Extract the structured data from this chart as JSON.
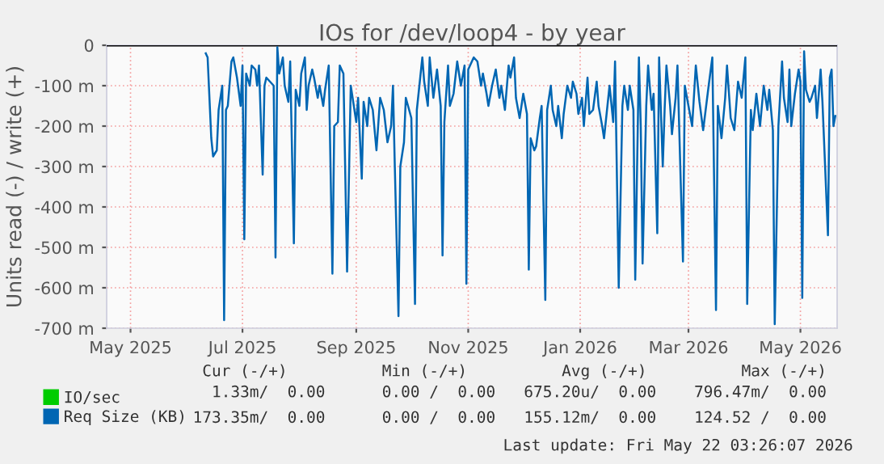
{
  "chart_data": {
    "type": "line",
    "title": "IOs for /dev/loop4 - by year",
    "ylabel": "Units read (-) / write (+)",
    "xlim": [
      "2025-04-18",
      "2026-05-21"
    ],
    "xticks": [
      {
        "value": "2025-05-01",
        "label": "May 2025"
      },
      {
        "value": "2025-07-01",
        "label": "Jul 2025"
      },
      {
        "value": "2025-09-01",
        "label": "Sep 2025"
      },
      {
        "value": "2025-11-01",
        "label": "Nov 2025"
      },
      {
        "value": "2026-01-01",
        "label": "Jan 2026"
      },
      {
        "value": "2026-03-01",
        "label": "Mar 2026"
      },
      {
        "value": "2026-05-01",
        "label": "May 2026"
      }
    ],
    "ylim": [
      -700,
      0
    ],
    "yticks": [
      {
        "value": -700,
        "label": "-700 m"
      },
      {
        "value": -600,
        "label": "-600 m"
      },
      {
        "value": -500,
        "label": "-500 m"
      },
      {
        "value": -400,
        "label": "-400 m"
      },
      {
        "value": -300,
        "label": "-300 m"
      },
      {
        "value": -200,
        "label": "-200 m"
      },
      {
        "value": -100,
        "label": "-100 m"
      },
      0
    ],
    "grid": true,
    "legend": "bottom",
    "ref_lines": [
      {
        "axis": "y",
        "value": 0,
        "color": "#000000"
      }
    ],
    "series": [
      {
        "name": "IO/sec",
        "color": "#00cc00"
      },
      {
        "name": "Req Size (KB)",
        "color": "#0066b3",
        "x": [
          "2025-06-11",
          "2025-06-12",
          "2025-06-14",
          "2025-06-15",
          "2025-06-17",
          "2025-06-18",
          "2025-06-20",
          "2025-06-21",
          "2025-06-22",
          "2025-06-23",
          "2025-06-25",
          "2025-06-26",
          "2025-06-28",
          "2025-06-30",
          "2025-07-01",
          "2025-07-02",
          "2025-07-03",
          "2025-07-05",
          "2025-07-06",
          "2025-07-08",
          "2025-07-09",
          "2025-07-10",
          "2025-07-12",
          "2025-07-13",
          "2025-07-14",
          "2025-07-16",
          "2025-07-18",
          "2025-07-19",
          "2025-07-20",
          "2025-07-21",
          "2025-07-23",
          "2025-07-24",
          "2025-07-26",
          "2025-07-27",
          "2025-07-29",
          "2025-07-30",
          "2025-08-01",
          "2025-08-02",
          "2025-08-04",
          "2025-08-05",
          "2025-08-06",
          "2025-08-08",
          "2025-08-09",
          "2025-08-11",
          "2025-08-12",
          "2025-08-14",
          "2025-08-15",
          "2025-08-17",
          "2025-08-19",
          "2025-08-20",
          "2025-08-22",
          "2025-08-23",
          "2025-08-25",
          "2025-08-27",
          "2025-08-29",
          "2025-09-01",
          "2025-09-02",
          "2025-09-04",
          "2025-09-05",
          "2025-09-07",
          "2025-09-08",
          "2025-09-10",
          "2025-09-12",
          "2025-09-14",
          "2025-09-16",
          "2025-09-18",
          "2025-09-20",
          "2025-09-21",
          "2025-09-22",
          "2025-09-24",
          "2025-09-25",
          "2025-09-27",
          "2025-09-28",
          "2025-10-01",
          "2025-10-03",
          "2025-10-04",
          "2025-10-07",
          "2025-10-08",
          "2025-10-10",
          "2025-10-11",
          "2025-10-13",
          "2025-10-15",
          "2025-10-17",
          "2025-10-18",
          "2025-10-19",
          "2025-10-21",
          "2025-10-22",
          "2025-10-24",
          "2025-10-26",
          "2025-10-28",
          "2025-10-30",
          "2025-10-31",
          "2025-11-01",
          "2025-11-04",
          "2025-11-06",
          "2025-11-08",
          "2025-11-09",
          "2025-11-11",
          "2025-11-12",
          "2025-11-14",
          "2025-11-16",
          "2025-11-18",
          "2025-11-19",
          "2025-11-21",
          "2025-11-23",
          "2025-11-24",
          "2025-11-26",
          "2025-11-27",
          "2025-11-29",
          "2025-12-01",
          "2025-12-03",
          "2025-12-04",
          "2025-12-05",
          "2025-12-07",
          "2025-12-08",
          "2025-12-10",
          "2025-12-11",
          "2025-12-13",
          "2025-12-14",
          "2025-12-16",
          "2025-12-17",
          "2025-12-19",
          "2025-12-20",
          "2025-12-22",
          "2025-12-23",
          "2025-12-25",
          "2025-12-27",
          "2025-12-28",
          "2025-12-30",
          "2025-12-31",
          "2026-01-02",
          "2026-01-03",
          "2026-01-05",
          "2026-01-06",
          "2026-01-08",
          "2026-01-10",
          "2026-01-11",
          "2026-01-13",
          "2026-01-14",
          "2026-01-17",
          "2026-01-19",
          "2026-01-20",
          "2026-01-22",
          "2026-01-24",
          "2026-01-25",
          "2026-01-27",
          "2026-01-28",
          "2026-01-30",
          "2026-01-31",
          "2026-02-02",
          "2026-02-03",
          "2026-02-04",
          "2026-02-06",
          "2026-02-07",
          "2026-02-09",
          "2026-02-10",
          "2026-02-12",
          "2026-02-13",
          "2026-02-15",
          "2026-02-16",
          "2026-02-17",
          "2026-02-19",
          "2026-02-20",
          "2026-02-22",
          "2026-02-23",
          "2026-02-26",
          "2026-02-27",
          "2026-03-01",
          "2026-03-03",
          "2026-03-05",
          "2026-03-07",
          "2026-03-09",
          "2026-03-12",
          "2026-03-14",
          "2026-03-16",
          "2026-03-17",
          "2026-03-19",
          "2026-03-21",
          "2026-03-22",
          "2026-03-24",
          "2026-03-26",
          "2026-03-28",
          "2026-03-30",
          "2026-04-01",
          "2026-04-02",
          "2026-04-04",
          "2026-04-05",
          "2026-04-07",
          "2026-04-09",
          "2026-04-11",
          "2026-04-13",
          "2026-04-14",
          "2026-04-16",
          "2026-04-17",
          "2026-04-19",
          "2026-04-21",
          "2026-04-22",
          "2026-04-24",
          "2026-04-25",
          "2026-04-26",
          "2026-04-28",
          "2026-04-30",
          "2026-05-01",
          "2026-05-02",
          "2026-05-03",
          "2026-05-04",
          "2026-05-06",
          "2026-05-07",
          "2026-05-09",
          "2026-05-10",
          "2026-05-12",
          "2026-05-13",
          "2026-05-16",
          "2026-05-17",
          "2026-05-18",
          "2026-05-19",
          "2026-05-20"
        ],
        "values": [
          -20,
          -30,
          -230,
          -275,
          -260,
          -160,
          -100,
          -680,
          -160,
          -150,
          -40,
          -30,
          -80,
          -150,
          -50,
          -480,
          -70,
          -100,
          -50,
          -60,
          -100,
          -50,
          -320,
          -100,
          -80,
          -90,
          -100,
          -525,
          -5,
          -70,
          -30,
          -100,
          -140,
          -40,
          -490,
          -110,
          -150,
          -70,
          -30,
          -160,
          -100,
          -60,
          -80,
          -130,
          -100,
          -150,
          -110,
          -50,
          -565,
          -200,
          -190,
          -50,
          -70,
          -560,
          -100,
          -190,
          -130,
          -330,
          -140,
          -200,
          -130,
          -160,
          -260,
          -130,
          -160,
          -240,
          -200,
          -100,
          -300,
          -670,
          -300,
          -240,
          -130,
          -180,
          -640,
          -160,
          -30,
          -90,
          -150,
          -30,
          -130,
          -60,
          -150,
          -520,
          -190,
          -50,
          -150,
          -120,
          -40,
          -100,
          -50,
          -590,
          -60,
          -30,
          -40,
          -100,
          -70,
          -120,
          -150,
          -100,
          -60,
          -130,
          -100,
          -160,
          -50,
          -80,
          -30,
          -130,
          -180,
          -120,
          -170,
          -555,
          -230,
          -260,
          -250,
          -180,
          -150,
          -630,
          -160,
          -100,
          -160,
          -200,
          -150,
          -230,
          -170,
          -100,
          -130,
          -90,
          -120,
          -170,
          -130,
          -200,
          -80,
          -170,
          -160,
          -90,
          -150,
          -200,
          -230,
          -100,
          -190,
          -40,
          -600,
          -150,
          -100,
          -160,
          -100,
          -160,
          -580,
          -30,
          -200,
          -540,
          -150,
          -50,
          -160,
          -120,
          -465,
          -30,
          -300,
          -160,
          -50,
          -150,
          -220,
          -130,
          -50,
          -535,
          -100,
          -150,
          -200,
          -50,
          -140,
          -210,
          -100,
          -30,
          -655,
          -150,
          -230,
          -130,
          -50,
          -180,
          -210,
          -90,
          -130,
          -30,
          -640,
          -160,
          -210,
          -120,
          -200,
          -100,
          -160,
          -110,
          -210,
          -690,
          -200,
          -40,
          -130,
          -190,
          -60,
          -200,
          -120,
          -60,
          -90,
          -625,
          -15,
          -110,
          -140,
          -130,
          -100,
          -180,
          -60,
          -140,
          -470,
          -80,
          -60,
          -200,
          -175
        ]
      }
    ],
    "annotations": [
      "Cur (-/+)          Min (-/+)          Avg (-/+)          Max (-/+)",
      "1.33m/  0.00      0.00 /  0.00   675.20u/  0.00    796.47m/  0.00",
      "173.35m/  0.00      0.00 /  0.00   155.12m/  0.00    124.52 /  0.00",
      "Last update: Fri May 22 03:26:07 2026"
    ]
  }
}
